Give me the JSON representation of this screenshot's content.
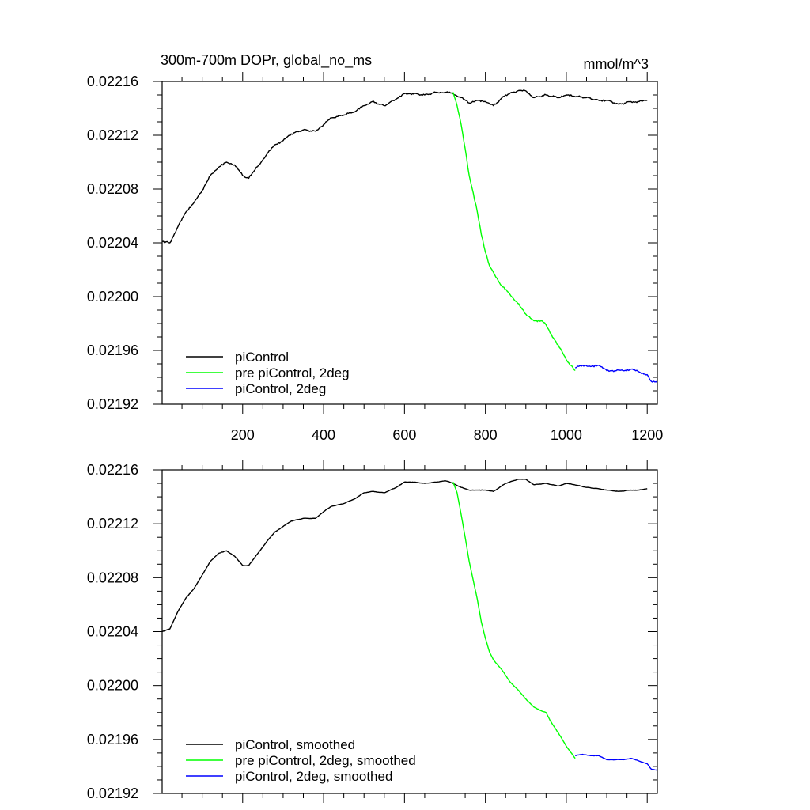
{
  "chart_data": [
    {
      "type": "line",
      "title": "300m-700m DOPr, global_no_ms",
      "units": "mmol/m^3",
      "xlabel": "",
      "ylabel": "",
      "xlim": [
        1,
        1225
      ],
      "ylim": [
        0.02192,
        0.02216
      ],
      "x_ticks": [
        "200",
        "400",
        "600",
        "800",
        "1000",
        "1200"
      ],
      "y_ticks": [
        "0.02192",
        "0.02196",
        "0.02200",
        "0.02204",
        "0.02208",
        "0.02212",
        "0.02216"
      ],
      "grid": false,
      "legend_position": "bottom-left",
      "series": [
        {
          "name": "piControl",
          "color": "#000000",
          "x": [
            1,
            20,
            40,
            60,
            80,
            100,
            120,
            140,
            160,
            180,
            200,
            215,
            240,
            260,
            280,
            300,
            320,
            350,
            380,
            400,
            420,
            450,
            480,
            500,
            520,
            550,
            580,
            600,
            620,
            650,
            680,
            700,
            720,
            740,
            760,
            780,
            800,
            820,
            850,
            880,
            900,
            920,
            950,
            980,
            1000,
            1020,
            1050,
            1080,
            1100,
            1130,
            1160,
            1180,
            1200
          ],
          "y": [
            0.022041,
            0.02204,
            0.022052,
            0.022063,
            0.02207,
            0.022079,
            0.02209,
            0.022096,
            0.0221,
            0.022098,
            0.02209,
            0.022088,
            0.022098,
            0.022106,
            0.022113,
            0.022116,
            0.022121,
            0.022124,
            0.022123,
            0.022128,
            0.022133,
            0.022135,
            0.022138,
            0.022142,
            0.022145,
            0.022142,
            0.022147,
            0.022151,
            0.022151,
            0.02215,
            0.022152,
            0.022152,
            0.022151,
            0.022148,
            0.022144,
            0.022146,
            0.022145,
            0.022142,
            0.02215,
            0.022153,
            0.022153,
            0.022148,
            0.02215,
            0.022148,
            0.02215,
            0.022149,
            0.022148,
            0.022146,
            0.022146,
            0.022143,
            0.022145,
            0.022145,
            0.022146
          ]
        },
        {
          "name": "pre piControl, 2deg",
          "color": "#00ff00",
          "x": [
            720,
            730,
            740,
            750,
            760,
            770,
            780,
            790,
            800,
            810,
            820,
            840,
            860,
            880,
            900,
            920,
            940,
            950,
            960,
            980,
            1000,
            1022
          ],
          "y": [
            0.022152,
            0.022142,
            0.022128,
            0.02211,
            0.02209,
            0.022077,
            0.022063,
            0.022046,
            0.022033,
            0.022023,
            0.022018,
            0.022008,
            0.022002,
            0.021995,
            0.021987,
            0.021982,
            0.021982,
            0.021979,
            0.021973,
            0.021964,
            0.021953,
            0.021945
          ]
        },
        {
          "name": "piControl, 2deg",
          "color": "#0000ff",
          "x": [
            1022,
            1040,
            1060,
            1080,
            1100,
            1120,
            1140,
            1160,
            1180,
            1200,
            1210,
            1225
          ],
          "y": [
            0.021947,
            0.021949,
            0.021948,
            0.021949,
            0.021945,
            0.021945,
            0.021945,
            0.021946,
            0.021944,
            0.021942,
            0.021937,
            0.021936
          ]
        }
      ]
    },
    {
      "type": "line",
      "title": "",
      "xlabel": "",
      "ylabel": "",
      "xlim": [
        1,
        1225
      ],
      "ylim": [
        0.02192,
        0.02216
      ],
      "y_ticks": [
        "0.02192",
        "0.02196",
        "0.02200",
        "0.02204",
        "0.02208",
        "0.02212",
        "0.02216"
      ],
      "grid": false,
      "legend_position": "bottom-left",
      "series": [
        {
          "name": "piControl, smoothed",
          "color": "#000000",
          "x": [
            1,
            20,
            40,
            60,
            80,
            100,
            120,
            140,
            160,
            180,
            200,
            215,
            240,
            260,
            280,
            300,
            320,
            350,
            380,
            400,
            420,
            450,
            480,
            500,
            520,
            550,
            580,
            600,
            620,
            650,
            680,
            700,
            720,
            740,
            760,
            780,
            800,
            820,
            850,
            880,
            900,
            920,
            950,
            980,
            1000,
            1020,
            1050,
            1080,
            1100,
            1130,
            1160,
            1180,
            1200
          ],
          "y": [
            0.02204,
            0.022042,
            0.022055,
            0.022065,
            0.022072,
            0.022082,
            0.022092,
            0.022098,
            0.0221,
            0.022096,
            0.022089,
            0.022089,
            0.022099,
            0.022107,
            0.022114,
            0.022118,
            0.022122,
            0.022124,
            0.022124,
            0.022129,
            0.022133,
            0.022135,
            0.022139,
            0.022143,
            0.022144,
            0.022143,
            0.022147,
            0.022151,
            0.022151,
            0.02215,
            0.022151,
            0.022152,
            0.02215,
            0.022147,
            0.022145,
            0.022145,
            0.022145,
            0.022144,
            0.02215,
            0.022153,
            0.022153,
            0.022149,
            0.02215,
            0.022148,
            0.02215,
            0.022149,
            0.022147,
            0.022146,
            0.022145,
            0.022144,
            0.022145,
            0.022145,
            0.022146
          ]
        },
        {
          "name": "pre piControl, 2deg, smoothed",
          "color": "#00ff00",
          "x": [
            720,
            730,
            740,
            750,
            760,
            770,
            780,
            790,
            800,
            810,
            820,
            840,
            860,
            880,
            900,
            920,
            940,
            950,
            960,
            980,
            1000,
            1022
          ],
          "y": [
            0.022151,
            0.022143,
            0.022127,
            0.02211,
            0.022092,
            0.022078,
            0.022064,
            0.022047,
            0.022035,
            0.022025,
            0.022019,
            0.022012,
            0.022003,
            0.021997,
            0.02199,
            0.021984,
            0.021981,
            0.02198,
            0.021974,
            0.021965,
            0.021955,
            0.021946
          ]
        },
        {
          "name": "piControl, 2deg, smoothed",
          "color": "#0000ff",
          "x": [
            1022,
            1040,
            1060,
            1080,
            1100,
            1120,
            1140,
            1160,
            1180,
            1200,
            1210,
            1225
          ],
          "y": [
            0.021948,
            0.021949,
            0.021948,
            0.021948,
            0.021945,
            0.021945,
            0.021945,
            0.021946,
            0.021944,
            0.021942,
            0.021938,
            0.021937
          ]
        }
      ]
    }
  ]
}
